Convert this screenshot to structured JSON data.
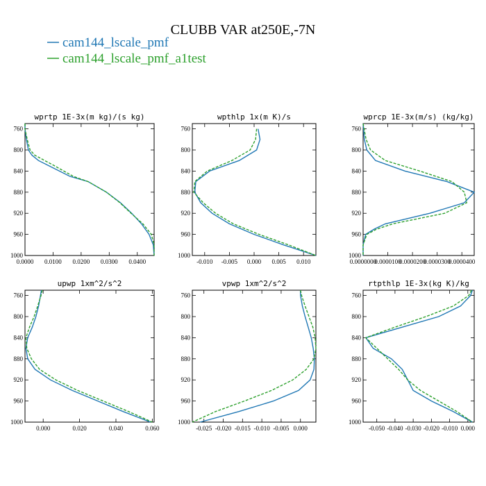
{
  "title": "CLUBB VAR at250E,-7N",
  "legend": [
    {
      "label": "cam144_lscale_pmf",
      "color": "#1f77b4",
      "dash": "solid"
    },
    {
      "label": "cam144_lscale_pmf_a1test",
      "color": "#2ca02c",
      "dash": "dashed"
    }
  ],
  "chart_data": [
    {
      "type": "line",
      "title": "wprtp  1E-3x(m kg)/(s kg)",
      "xlim": [
        0,
        0.046
      ],
      "ylim": [
        1000,
        750
      ],
      "xticks": [
        0.0,
        0.01,
        0.02,
        0.03,
        0.04
      ],
      "xticklabels": [
        "0.0000",
        "0.0100",
        "0.0200",
        "0.0300",
        "0.0400"
      ],
      "yticks": [
        760,
        800,
        840,
        880,
        920,
        960,
        1000
      ],
      "series": [
        {
          "name": "cam144_lscale_pmf",
          "y": [
            750,
            760,
            780,
            800,
            810,
            820,
            830,
            850,
            860,
            880,
            900,
            920,
            940,
            960,
            980,
            1000
          ],
          "x": [
            0.0,
            0.0,
            0.0005,
            0.0012,
            0.0025,
            0.0048,
            0.0085,
            0.016,
            0.0225,
            0.029,
            0.034,
            0.038,
            0.0415,
            0.0442,
            0.0457,
            0.046
          ]
        },
        {
          "name": "cam144_lscale_pmf_a1test",
          "y": [
            750,
            760,
            780,
            800,
            810,
            820,
            830,
            850,
            860,
            880,
            900,
            920,
            940,
            960,
            980,
            1000
          ],
          "x": [
            0.0,
            0.0,
            0.0008,
            0.0018,
            0.0035,
            0.007,
            0.0105,
            0.0172,
            0.0225,
            0.029,
            0.0338,
            0.0378,
            0.042,
            0.045,
            0.046,
            0.046
          ]
        }
      ]
    },
    {
      "type": "line",
      "title": "wpthlp  1x(m K)/s",
      "xlim": [
        -0.0125,
        0.0125
      ],
      "ylim": [
        1000,
        750
      ],
      "xticks": [
        -0.01,
        -0.005,
        0.0,
        0.005,
        0.01
      ],
      "xticklabels": [
        "-0.010",
        "-0.005",
        "0.000",
        "0.005",
        "0.010"
      ],
      "yticks": [
        760,
        800,
        840,
        880,
        920,
        960,
        1000
      ],
      "series": [
        {
          "name": "cam144_lscale_pmf",
          "y": [
            760,
            780,
            800,
            820,
            840,
            860,
            880,
            900,
            920,
            940,
            960,
            980,
            1000
          ],
          "x": [
            0.0008,
            0.0012,
            0.0005,
            -0.003,
            -0.009,
            -0.0118,
            -0.012,
            -0.0108,
            -0.0085,
            -0.005,
            0.0,
            0.006,
            0.0125
          ]
        },
        {
          "name": "cam144_lscale_pmf_a1test",
          "y": [
            760,
            780,
            800,
            820,
            840,
            860,
            880,
            900,
            920,
            940,
            960,
            980,
            1000
          ],
          "x": [
            0.0005,
            0.0003,
            -0.0008,
            -0.0045,
            -0.0095,
            -0.012,
            -0.0122,
            -0.0103,
            -0.0078,
            -0.0042,
            0.001,
            0.007,
            0.0125
          ]
        }
      ]
    },
    {
      "type": "line",
      "title": "wprcp  1E-3x(m/s) (kg/kg)",
      "xlim": [
        0,
        4.5e-05
      ],
      "ylim": [
        1000,
        750
      ],
      "xticks": [
        0.0,
        1e-05,
        2e-05,
        3e-05,
        4e-05
      ],
      "xticklabels": [
        "0.0000000",
        "0.0000100",
        "0.0000200",
        "0.0000300",
        "0.0000400"
      ],
      "yticks": [
        760,
        800,
        840,
        880,
        920,
        960,
        1000
      ],
      "series": [
        {
          "name": "cam144_lscale_pmf",
          "y": [
            750,
            780,
            800,
            820,
            840,
            860,
            880,
            900,
            920,
            940,
            950,
            960,
            980,
            1000
          ],
          "x": [
            0.0,
            5e-07,
            1.5e-06,
            5e-06,
            1.7e-05,
            3.4e-05,
            4.5e-05,
            4.1e-05,
            2.7e-05,
            9e-06,
            4.5e-06,
            1e-06,
            0.0,
            0.0
          ]
        },
        {
          "name": "cam144_lscale_pmf_a1test",
          "y": [
            750,
            780,
            800,
            820,
            840,
            860,
            880,
            900,
            920,
            940,
            950,
            960,
            980,
            1000
          ],
          "x": [
            0.0,
            1.2e-06,
            3e-06,
            9e-06,
            2.3e-05,
            3.6e-05,
            4.1e-05,
            4.2e-05,
            3.3e-05,
            1.2e-05,
            5.5e-06,
            1.5e-06,
            0.0,
            0.0
          ]
        }
      ]
    },
    {
      "type": "line",
      "title": "upwp  1xm^2/s^2",
      "xlim": [
        -0.01,
        0.061
      ],
      "ylim": [
        1000,
        750
      ],
      "xticks": [
        0.0,
        0.02,
        0.04,
        0.06
      ],
      "xticklabels": [
        "0.000",
        "0.020",
        "0.040",
        "0.060"
      ],
      "yticks": [
        760,
        800,
        840,
        880,
        920,
        960,
        1000
      ],
      "series": [
        {
          "name": "cam144_lscale_pmf",
          "y": [
            750,
            760,
            780,
            800,
            820,
            840,
            860,
            880,
            900,
            920,
            940,
            960,
            980,
            1000
          ],
          "x": [
            -0.001,
            -0.0015,
            -0.0025,
            -0.004,
            -0.006,
            -0.0085,
            -0.0095,
            -0.0085,
            -0.0045,
            0.004,
            0.016,
            0.03,
            0.044,
            0.059
          ]
        },
        {
          "name": "cam144_lscale_pmf_a1test",
          "y": [
            750,
            760,
            780,
            800,
            820,
            840,
            860,
            880,
            900,
            920,
            940,
            960,
            980,
            1000
          ],
          "x": [
            -0.0005,
            -0.0012,
            -0.003,
            -0.005,
            -0.0075,
            -0.0095,
            -0.009,
            -0.0065,
            -0.002,
            0.007,
            0.019,
            0.033,
            0.047,
            0.06
          ]
        }
      ]
    },
    {
      "type": "line",
      "title": "vpwp  1xm^2/s^2",
      "xlim": [
        -0.028,
        0.004
      ],
      "ylim": [
        1000,
        750
      ],
      "xticks": [
        -0.025,
        -0.02,
        -0.015,
        -0.01,
        -0.005,
        0.0
      ],
      "xticklabels": [
        "-0.025",
        "-0.020",
        "-0.015",
        "-0.010",
        "-0.005",
        "0.000"
      ],
      "yticks": [
        760,
        800,
        840,
        880,
        920,
        960,
        1000
      ],
      "series": [
        {
          "name": "cam144_lscale_pmf",
          "y": [
            750,
            760,
            780,
            800,
            820,
            840,
            860,
            880,
            900,
            920,
            940,
            960,
            980,
            1000
          ],
          "x": [
            0.0,
            0.0,
            0.0005,
            0.0012,
            0.002,
            0.0028,
            0.0033,
            0.0036,
            0.0035,
            0.0025,
            -0.0005,
            -0.007,
            -0.016,
            -0.026
          ]
        },
        {
          "name": "cam144_lscale_pmf_a1test",
          "y": [
            750,
            760,
            780,
            800,
            820,
            840,
            860,
            880,
            900,
            920,
            940,
            960,
            980,
            1000
          ],
          "x": [
            0.0,
            0.0003,
            0.0012,
            0.0022,
            0.0032,
            0.0038,
            0.004,
            0.0035,
            0.0015,
            -0.002,
            -0.0075,
            -0.0145,
            -0.022,
            -0.028
          ]
        }
      ]
    },
    {
      "type": "line",
      "title": "rtpthlp  1E-3x(kg K)/kg",
      "xlim": [
        -0.0575,
        0.0035
      ],
      "ylim": [
        1000,
        750
      ],
      "xticks": [
        -0.05,
        -0.04,
        -0.03,
        -0.02,
        -0.01,
        0.0
      ],
      "xticklabels": [
        "-0.050",
        "-0.040",
        "-0.030",
        "-0.020",
        "-0.010",
        "0.000"
      ],
      "yticks": [
        760,
        800,
        840,
        880,
        920,
        960,
        1000
      ],
      "series": [
        {
          "name": "cam144_lscale_pmf",
          "y": [
            750,
            760,
            780,
            800,
            820,
            840,
            860,
            880,
            900,
            920,
            940,
            960,
            980,
            1000
          ],
          "x": [
            0.0025,
            0.0015,
            -0.004,
            -0.016,
            -0.036,
            -0.056,
            -0.052,
            -0.042,
            -0.036,
            -0.033,
            -0.03,
            -0.02,
            -0.008,
            0.0025
          ]
        },
        {
          "name": "cam144_lscale_pmf_a1test",
          "y": [
            750,
            760,
            780,
            800,
            820,
            840,
            860,
            880,
            900,
            920,
            940,
            960,
            980,
            1000
          ],
          "x": [
            0.002,
            0.0005,
            -0.008,
            -0.023,
            -0.04,
            -0.056,
            -0.05,
            -0.044,
            -0.038,
            -0.033,
            -0.026,
            -0.016,
            -0.006,
            0.0025
          ]
        }
      ]
    }
  ]
}
